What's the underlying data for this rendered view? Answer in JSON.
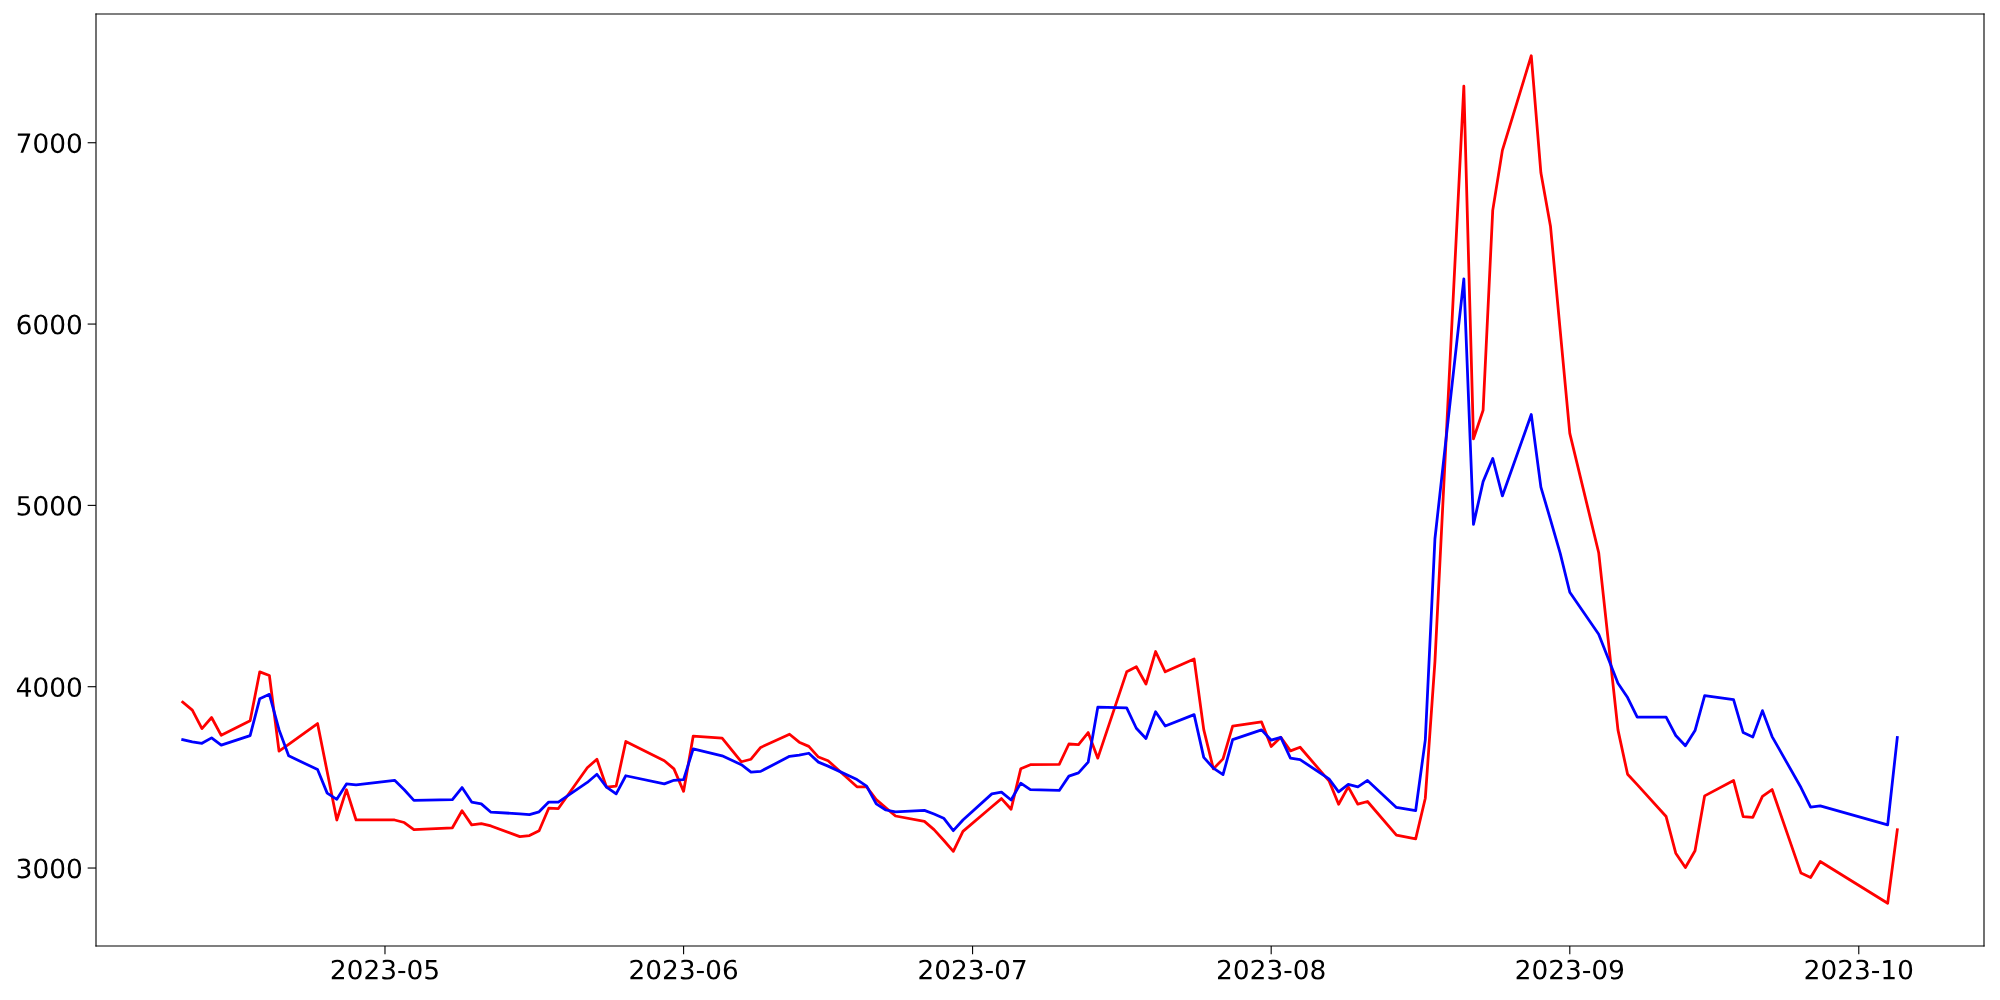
{
  "chart_data": {
    "type": "line",
    "x": [
      "2023-04-10",
      "2023-04-11",
      "2023-04-12",
      "2023-04-13",
      "2023-04-14",
      "2023-04-17",
      "2023-04-18",
      "2023-04-19",
      "2023-04-20",
      "2023-04-21",
      "2023-04-24",
      "2023-04-25",
      "2023-04-26",
      "2023-04-27",
      "2023-04-28",
      "2023-05-02",
      "2023-05-03",
      "2023-05-04",
      "2023-05-08",
      "2023-05-09",
      "2023-05-10",
      "2023-05-11",
      "2023-05-12",
      "2023-05-15",
      "2023-05-16",
      "2023-05-17",
      "2023-05-18",
      "2023-05-19",
      "2023-05-22",
      "2023-05-23",
      "2023-05-24",
      "2023-05-25",
      "2023-05-26",
      "2023-05-30",
      "2023-05-31",
      "2023-06-01",
      "2023-06-02",
      "2023-06-05",
      "2023-06-07",
      "2023-06-08",
      "2023-06-09",
      "2023-06-12",
      "2023-06-13",
      "2023-06-14",
      "2023-06-15",
      "2023-06-16",
      "2023-06-19",
      "2023-06-20",
      "2023-06-21",
      "2023-06-22",
      "2023-06-23",
      "2023-06-26",
      "2023-06-27",
      "2023-06-28",
      "2023-06-29",
      "2023-06-30",
      "2023-07-03",
      "2023-07-04",
      "2023-07-05",
      "2023-07-06",
      "2023-07-07",
      "2023-07-10",
      "2023-07-11",
      "2023-07-12",
      "2023-07-13",
      "2023-07-14",
      "2023-07-17",
      "2023-07-18",
      "2023-07-19",
      "2023-07-20",
      "2023-07-21",
      "2023-07-24",
      "2023-07-25",
      "2023-07-26",
      "2023-07-27",
      "2023-07-28",
      "2023-07-31",
      "2023-08-01",
      "2023-08-02",
      "2023-08-03",
      "2023-08-04",
      "2023-08-07",
      "2023-08-08",
      "2023-08-09",
      "2023-08-10",
      "2023-08-11",
      "2023-08-14",
      "2023-08-16",
      "2023-08-17",
      "2023-08-18",
      "2023-08-21",
      "2023-08-22",
      "2023-08-23",
      "2023-08-24",
      "2023-08-25",
      "2023-08-28",
      "2023-08-29",
      "2023-08-30",
      "2023-08-31",
      "2023-09-01",
      "2023-09-04",
      "2023-09-06",
      "2023-09-07",
      "2023-09-08",
      "2023-09-11",
      "2023-09-12",
      "2023-09-13",
      "2023-09-14",
      "2023-09-15",
      "2023-09-18",
      "2023-09-19",
      "2023-09-20",
      "2023-09-21",
      "2023-09-22",
      "2023-09-25",
      "2023-09-26",
      "2023-09-27",
      "2023-10-04",
      "2023-10-05"
    ],
    "series": [
      {
        "color": "#ff0000",
        "values": [
          3915,
          3871,
          3769,
          3830,
          3732,
          3812,
          4082,
          4062,
          3645,
          3682,
          3797,
          3531,
          3265,
          3432,
          3265,
          3265,
          3251,
          3212,
          3222,
          3316,
          3238,
          3245,
          3232,
          3173,
          3179,
          3206,
          3330,
          3328,
          3553,
          3600,
          3446,
          3452,
          3698,
          3592,
          3547,
          3423,
          3728,
          3716,
          3586,
          3600,
          3665,
          3738,
          3694,
          3671,
          3612,
          3592,
          3448,
          3448,
          3377,
          3332,
          3287,
          3257,
          3212,
          3153,
          3092,
          3202,
          3338,
          3383,
          3324,
          3547,
          3570,
          3572,
          3684,
          3680,
          3747,
          3606,
          4082,
          4110,
          4015,
          4194,
          4082,
          4153,
          3763,
          3547,
          3602,
          3783,
          3806,
          3670,
          3721,
          3646,
          3666,
          3481,
          3352,
          3448,
          3352,
          3367,
          3181,
          3161,
          3385,
          4138,
          7312,
          5367,
          5525,
          6627,
          6958,
          7480,
          6834,
          6538,
          5967,
          5397,
          4739,
          3762,
          3517,
          3460,
          3284,
          3082,
          3003,
          3095,
          3398,
          3483,
          3284,
          3279,
          3395,
          3433,
          2972,
          2948,
          3036,
          2806,
          3211
        ]
      },
      {
        "color": "#0000ff",
        "values": [
          3708,
          3696,
          3688,
          3718,
          3678,
          3730,
          3934,
          3958,
          3763,
          3619,
          3543,
          3413,
          3379,
          3464,
          3458,
          3484,
          3432,
          3373,
          3377,
          3444,
          3364,
          3354,
          3308,
          3299,
          3295,
          3310,
          3364,
          3364,
          3472,
          3517,
          3446,
          3409,
          3509,
          3464,
          3484,
          3488,
          3657,
          3619,
          3570,
          3529,
          3533,
          3616,
          3623,
          3633,
          3584,
          3562,
          3488,
          3452,
          3354,
          3320,
          3310,
          3318,
          3298,
          3275,
          3206,
          3265,
          3409,
          3419,
          3375,
          3468,
          3432,
          3428,
          3507,
          3525,
          3584,
          3887,
          3883,
          3771,
          3714,
          3862,
          3783,
          3846,
          3610,
          3551,
          3515,
          3708,
          3762,
          3705,
          3721,
          3606,
          3598,
          3492,
          3420,
          3461,
          3448,
          3483,
          3334,
          3317,
          3707,
          4816,
          6249,
          4895,
          5131,
          5259,
          5052,
          5501,
          5101,
          4920,
          4737,
          4521,
          4289,
          4019,
          3940,
          3832,
          3832,
          3731,
          3674,
          3758,
          3951,
          3929,
          3747,
          3723,
          3868,
          3725,
          3444,
          3336,
          3343,
          3238,
          3720
        ]
      }
    ],
    "xlim": [
      "2023-04-01",
      "2023-10-14"
    ],
    "xticks": [
      {
        "value": "2023-05-01",
        "label": "2023-05"
      },
      {
        "value": "2023-06-01",
        "label": "2023-06"
      },
      {
        "value": "2023-07-01",
        "label": "2023-07"
      },
      {
        "value": "2023-08-01",
        "label": "2023-08"
      },
      {
        "value": "2023-09-01",
        "label": "2023-09"
      },
      {
        "value": "2023-10-01",
        "label": "2023-10"
      }
    ],
    "ylim": [
      2570,
      7710
    ],
    "yticks": [
      3000,
      4000,
      5000,
      6000,
      7000
    ],
    "grid": false,
    "marker": "none",
    "line_style": "solid"
  }
}
